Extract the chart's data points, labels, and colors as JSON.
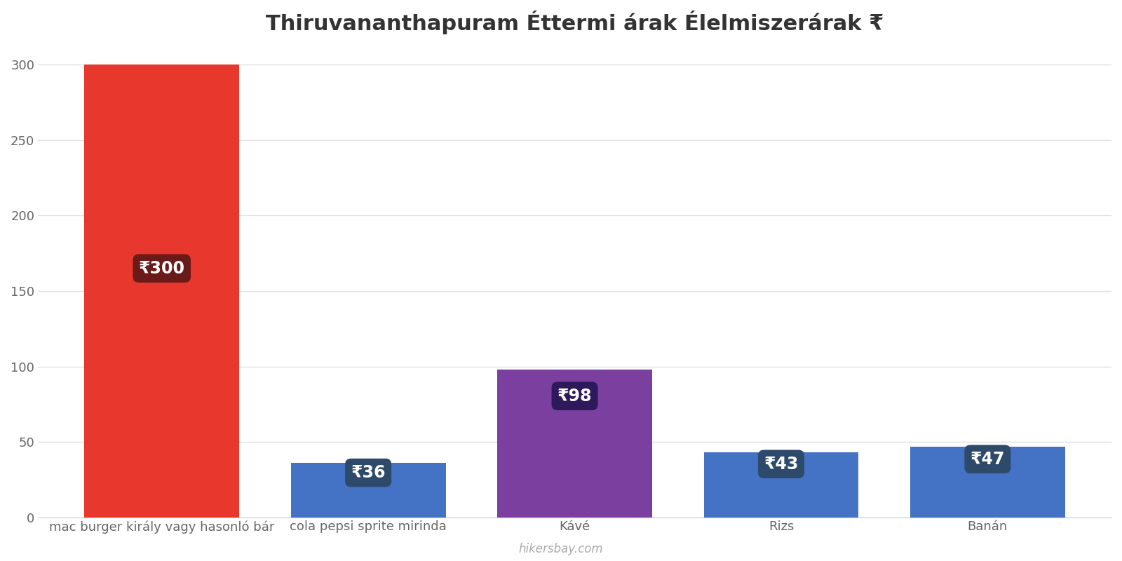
{
  "title": "Thiruvananthapuram Éttermi árak Élelmiszerárak ₹",
  "categories": [
    "mac burger király vagy hasonló bár",
    "cola pepsi sprite mirinda",
    "Kávé",
    "Rizs",
    "Banán"
  ],
  "values": [
    300,
    36,
    98,
    43,
    47
  ],
  "bar_colors": [
    "#E8372C",
    "#4472C4",
    "#7B3FA0",
    "#4472C4",
    "#4472C4"
  ],
  "label_bg_colors": [
    "#6B1A1A",
    "#2E4A6B",
    "#2E1A5A",
    "#2E4A6B",
    "#2E4A6B"
  ],
  "label_text_color": "#FFFFFF",
  "watermark": "hikersbay.com",
  "watermark_color": "#AAAAAA",
  "ylim": [
    0,
    310
  ],
  "yticks": [
    0,
    50,
    100,
    150,
    200,
    250,
    300
  ],
  "bg_color": "#FFFFFF",
  "grid_color": "#E0E0E0",
  "title_fontsize": 22,
  "tick_fontsize": 13,
  "label_fontsize": 17,
  "currency_symbol": "₹",
  "bar_width": 0.75
}
